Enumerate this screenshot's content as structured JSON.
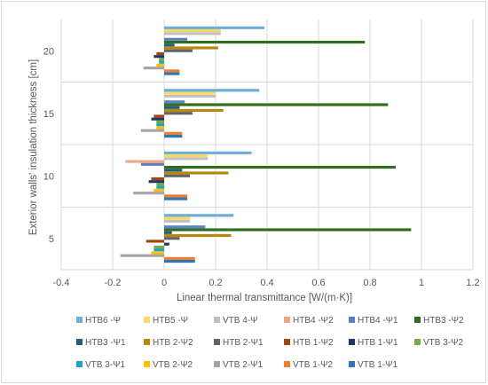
{
  "chart_data": {
    "type": "bar",
    "orientation": "horizontal",
    "title": "",
    "xlabel": "Linear thermal transmittance [W/(m·K)]",
    "ylabel": "Exterior walls' insulation thickness [cm]",
    "xlim": [
      -0.4,
      1.2
    ],
    "xticks": [
      "-0.4",
      "-0.2",
      "0",
      "0.2",
      "0.4",
      "0.6",
      "0.8",
      "1",
      "1.2"
    ],
    "categories": [
      "5",
      "10",
      "15",
      "20"
    ],
    "grid": "vertical",
    "legend_position": "bottom",
    "series": [
      {
        "name": "VTB 1-Ψ1",
        "color": "#2e75b6",
        "values": [
          0.12,
          0.09,
          0.07,
          0.06
        ]
      },
      {
        "name": "VTB 1-Ψ2",
        "color": "#ed7d31",
        "values": [
          0.12,
          0.09,
          0.07,
          0.06
        ]
      },
      {
        "name": "VTB 2-Ψ1",
        "color": "#a5a5a5",
        "values": [
          -0.17,
          -0.12,
          -0.09,
          -0.08
        ]
      },
      {
        "name": "VTB 2-Ψ2",
        "color": "#ffc000",
        "values": [
          -0.05,
          -0.04,
          -0.03,
          -0.03
        ]
      },
      {
        "name": "VTB 3-Ψ1",
        "color": "#1fa3c9",
        "values": [
          -0.04,
          -0.03,
          -0.03,
          -0.02
        ]
      },
      {
        "name": "VTB 3-Ψ2",
        "color": "#70ad47",
        "values": [
          -0.04,
          -0.03,
          -0.03,
          -0.02
        ]
      },
      {
        "name": "HTB 1-Ψ1",
        "color": "#1f3864",
        "values": [
          0.02,
          -0.06,
          -0.05,
          -0.04
        ]
      },
      {
        "name": "HTB 1-Ψ2",
        "color": "#9e480e",
        "values": [
          -0.07,
          -0.05,
          -0.04,
          -0.03
        ]
      },
      {
        "name": "HTB 2-Ψ1",
        "color": "#636363",
        "values": [
          0.06,
          0.1,
          0.11,
          0.11
        ]
      },
      {
        "name": "HTB 2-Ψ2",
        "color": "#b8860b",
        "values": [
          0.26,
          0.25,
          0.23,
          0.21
        ]
      },
      {
        "name": "HTB3 -Ψ1",
        "color": "#1f5f7a",
        "values": [
          0.03,
          0.07,
          0.06,
          0.04
        ]
      },
      {
        "name": "HTB3 -Ψ2",
        "color": "#2e6e1e",
        "values": [
          0.96,
          0.9,
          0.87,
          0.78
        ]
      },
      {
        "name": "HTB4 -Ψ1",
        "color": "#5b7fbf",
        "values": [
          0.16,
          -0.09,
          0.08,
          0.09
        ]
      },
      {
        "name": "HTB4 -Ψ2",
        "color": "#f4a582",
        "values": [
          0.0,
          -0.15,
          0.0,
          0.0
        ]
      },
      {
        "name": "VTB 4-Ψ",
        "color": "#c0c0c0",
        "values": [
          0.1,
          0.17,
          0.2,
          0.22
        ]
      },
      {
        "name": "HTB5 -Ψ",
        "color": "#ffd966",
        "values": [
          0.1,
          0.17,
          0.2,
          0.22
        ]
      },
      {
        "name": "HTB6 -Ψ",
        "color": "#6baed6",
        "values": [
          0.27,
          0.34,
          0.37,
          0.39
        ]
      }
    ],
    "legend_order": [
      "HTB6 -Ψ",
      "HTB5 -Ψ",
      "VTB 4-Ψ",
      "HTB4 -Ψ2",
      "HTB4 -Ψ1",
      "HTB3 -Ψ2",
      "HTB3 -Ψ1",
      "HTB 2-Ψ2",
      "HTB 2-Ψ1",
      "HTB 1-Ψ2",
      "HTB 1-Ψ1",
      "VTB 3-Ψ2",
      "VTB 3-Ψ1",
      "VTB 2-Ψ2",
      "VTB 2-Ψ1",
      "VTB 1-Ψ2",
      "VTB 1-Ψ1"
    ]
  }
}
